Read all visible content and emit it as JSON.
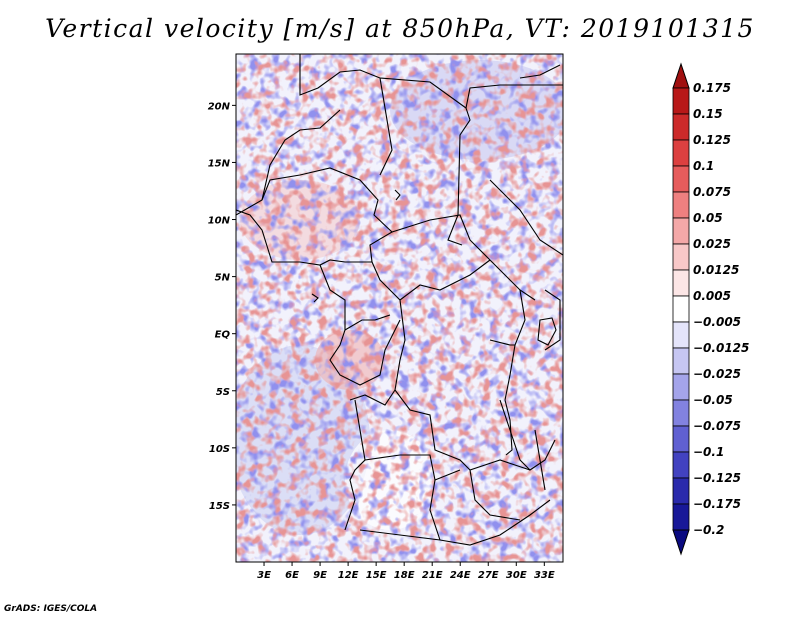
{
  "title": "Vertical velocity [m/s] at 850hPa, VT: 2019101315",
  "footer": "GrADS: IGES/COLA",
  "map": {
    "lat_labels": [
      "20N",
      "15N",
      "10N",
      "5N",
      "EQ",
      "5S",
      "10S",
      "15S"
    ],
    "lat_values": [
      20,
      15,
      10,
      5,
      0,
      -5,
      -10,
      -15
    ],
    "lon_labels": [
      "3E",
      "6E",
      "9E",
      "12E",
      "15E",
      "18E",
      "21E",
      "24E",
      "27E",
      "30E",
      "33E"
    ],
    "lon_values": [
      3,
      6,
      9,
      12,
      15,
      18,
      21,
      24,
      27,
      30,
      33
    ],
    "lon_range": [
      0,
      35
    ],
    "lat_range": [
      -20,
      24.5
    ]
  },
  "colorbar": {
    "labels": [
      "0.175",
      "0.15",
      "0.125",
      "0.1",
      "0.075",
      "0.05",
      "0.025",
      "0.0125",
      "0.005",
      "−0.005",
      "−0.0125",
      "−0.025",
      "−0.05",
      "−0.075",
      "−0.1",
      "−0.125",
      "−0.175",
      "−0.2"
    ],
    "colors": [
      "#a01010",
      "#b81818",
      "#cc2a2a",
      "#dc4040",
      "#e65c5c",
      "#ee8080",
      "#f4a8a8",
      "#f8c8c8",
      "#fce6e6",
      "#ffffff",
      "#e4e4fa",
      "#c6c6f2",
      "#a4a4ea",
      "#8282e0",
      "#6060d2",
      "#4242c0",
      "#2a2aac",
      "#181898",
      "#0a0a80"
    ]
  }
}
